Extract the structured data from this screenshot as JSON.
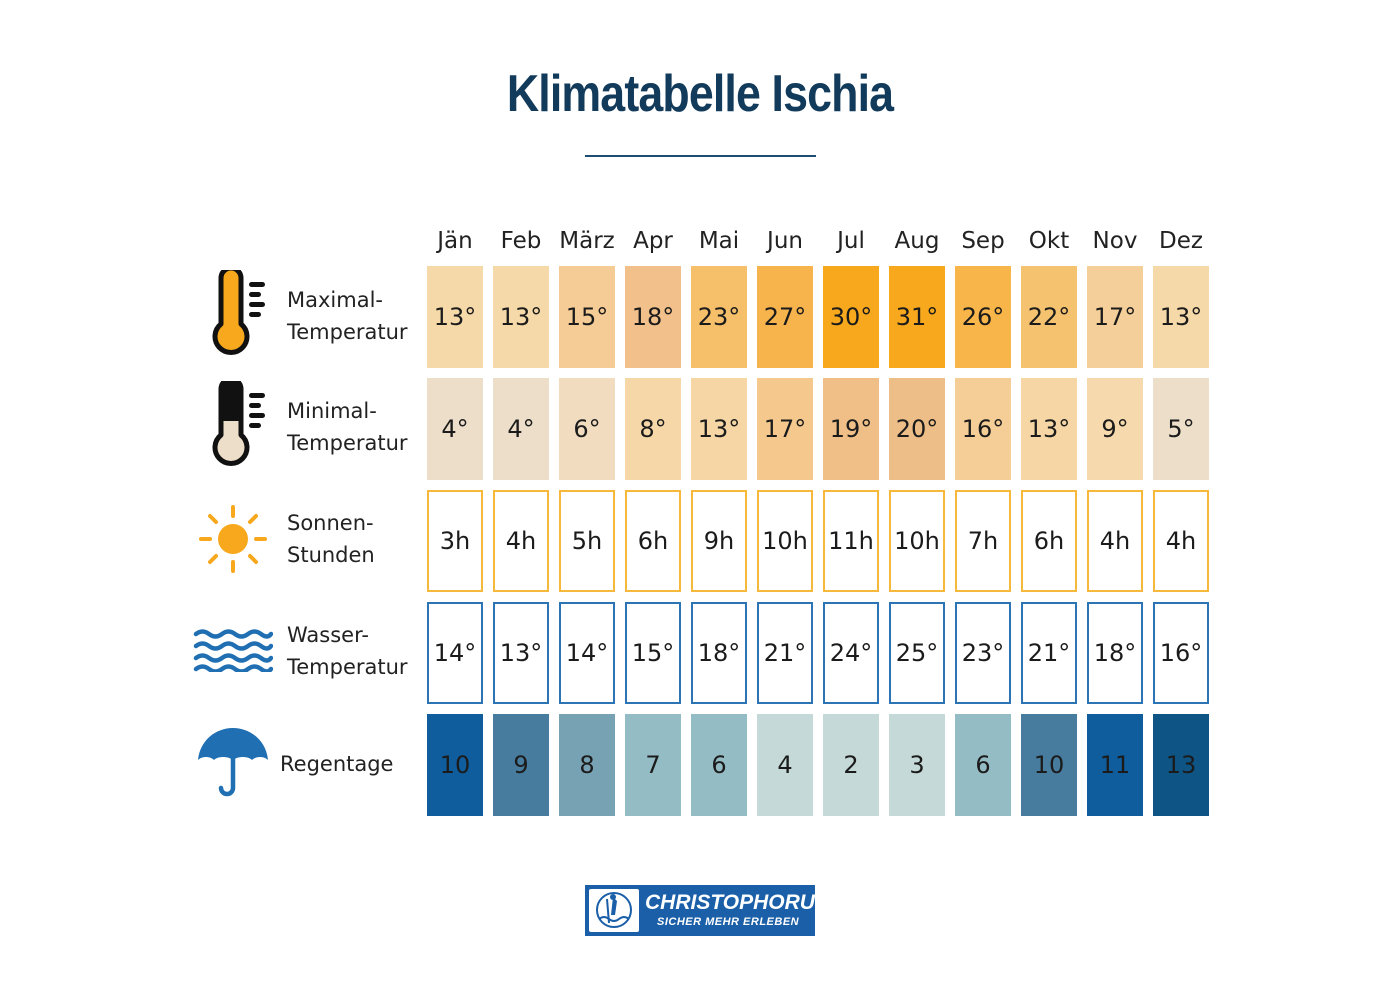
{
  "title": "Klimatabelle Ischia",
  "months": [
    "Jän",
    "Feb",
    "März",
    "Apr",
    "Mai",
    "Jun",
    "Jul",
    "Aug",
    "Sep",
    "Okt",
    "Nov",
    "Dez"
  ],
  "rows": {
    "max_temp": {
      "label_line1": "Maximal-",
      "label_line2": "Temperatur",
      "icon": "thermometer-high-icon",
      "values": [
        "13°",
        "13°",
        "15°",
        "18°",
        "23°",
        "27°",
        "30°",
        "31°",
        "26°",
        "22°",
        "17°",
        "13°"
      ],
      "colors": [
        "#f6d9a8",
        "#f6d9a8",
        "#f6cc96",
        "#f2c08a",
        "#f6bf6a",
        "#f7b44d",
        "#f7a81c",
        "#f7a81c",
        "#f8b54a",
        "#f5c36f",
        "#f5cf99",
        "#f6d9a8"
      ]
    },
    "min_temp": {
      "label_line1": "Minimal-",
      "label_line2": "Temperatur",
      "icon": "thermometer-low-icon",
      "values": [
        "4°",
        "4°",
        "6°",
        "8°",
        "13°",
        "17°",
        "19°",
        "20°",
        "16°",
        "13°",
        "9°",
        "5°"
      ],
      "colors": [
        "#ecdec9",
        "#ecdec9",
        "#f1dcc0",
        "#f6d8a8",
        "#f6d6a4",
        "#f5c88e",
        "#f0bf87",
        "#edbe87",
        "#f5cd96",
        "#f6d6a4",
        "#f6d9ad",
        "#ecdec9"
      ]
    },
    "sun_hours": {
      "label_line1": "Sonnen-",
      "label_line2": "Stunden",
      "icon": "sun-icon",
      "values": [
        "3h",
        "4h",
        "5h",
        "6h",
        "9h",
        "10h",
        "11h",
        "10h",
        "7h",
        "6h",
        "4h",
        "4h"
      ]
    },
    "water_temp": {
      "label_line1": "Wasser-",
      "label_line2": "Temperatur",
      "icon": "waves-icon",
      "values": [
        "14°",
        "13°",
        "14°",
        "15°",
        "18°",
        "21°",
        "24°",
        "25°",
        "23°",
        "21°",
        "18°",
        "16°"
      ]
    },
    "rain_days": {
      "label": "Regentage",
      "icon": "umbrella-icon",
      "values": [
        "10",
        "9",
        "8",
        "7",
        "6",
        "4",
        "2",
        "3",
        "6",
        "10",
        "11",
        "13"
      ],
      "colors": [
        "#0f5d9d",
        "#477c9f",
        "#77a2b3",
        "#94bcc5",
        "#94bcc5",
        "#c5d9d8",
        "#c5d9d8",
        "#c5d9d8",
        "#94bcc5",
        "#477c9f",
        "#0f5d9d",
        "#0e5585"
      ]
    }
  },
  "logo": {
    "name": "CHRISTOPHORUS",
    "slogan": "SICHER MEHR ERLEBEN",
    "brand_color": "#1a5fa8"
  }
}
